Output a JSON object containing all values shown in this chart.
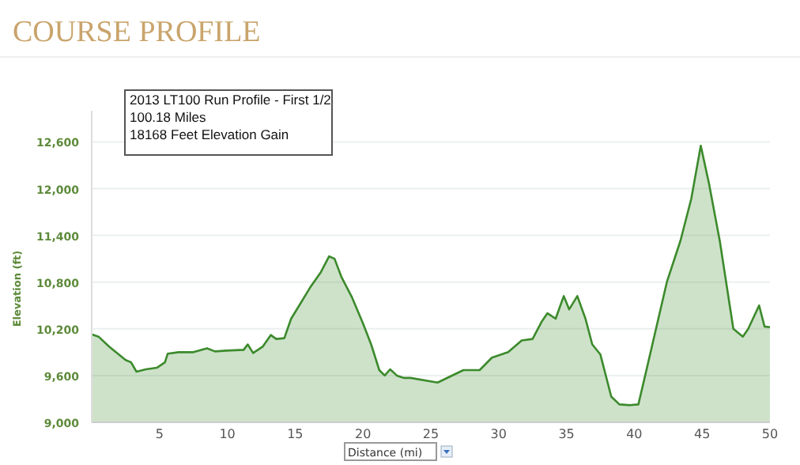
{
  "chart_data": {
    "type": "area",
    "title": "COURSE PROFILE",
    "xlabel": "Distance (mi)",
    "ylabel": "Elevation (ft)",
    "annotations": [
      "2013 LT100 Run Profile - First 1/2",
      "100.18 Miles",
      "18168 Feet Elevation Gain"
    ],
    "series": [
      {
        "color": "#3c8a2c",
        "x": [
          0,
          0.5,
          1.3,
          2.5,
          2.9,
          3.3,
          4.0,
          4.8,
          5.4,
          5.6,
          6.4,
          7.5,
          8.5,
          9.1,
          9.9,
          11.2,
          11.5,
          11.9,
          12.6,
          13.2,
          13.6,
          14.2,
          14.7,
          15.3,
          16.1,
          16.9,
          17.5,
          17.9,
          18.4,
          19.2,
          20.0,
          20.6,
          21.2,
          21.6,
          22.0,
          22.5,
          23.0,
          23.5,
          25.5,
          27.4,
          28.6,
          29.5,
          30.7,
          31.7,
          32.5,
          33.2,
          33.6,
          34.2,
          34.8,
          35.2,
          35.8,
          36.4,
          36.9,
          37.5,
          38.3,
          38.9,
          39.7,
          40.3,
          40.8,
          41.6,
          42.4,
          43.4,
          44.2,
          44.9,
          45.5,
          46.3,
          47.3,
          48.0,
          48.4,
          49.2,
          49.6,
          50.0
        ],
        "values": [
          10130,
          10100,
          9970,
          9800,
          9770,
          9650,
          9680,
          9700,
          9770,
          9880,
          9900,
          9900,
          9950,
          9910,
          9920,
          9930,
          10000,
          9890,
          9970,
          10120,
          10070,
          10080,
          10330,
          10500,
          10730,
          10930,
          11130,
          11100,
          10870,
          10600,
          10270,
          10000,
          9670,
          9600,
          9680,
          9600,
          9570,
          9570,
          9510,
          9670,
          9670,
          9830,
          9900,
          10050,
          10070,
          10300,
          10400,
          10330,
          10620,
          10450,
          10620,
          10330,
          10000,
          9870,
          9330,
          9230,
          9220,
          9230,
          9600,
          10200,
          10800,
          11330,
          11870,
          12550,
          12070,
          11330,
          10200,
          10100,
          10200,
          10500,
          10230,
          10220
        ]
      }
    ],
    "xlim": [
      0,
      50
    ],
    "xticks": [
      5,
      10,
      15,
      20,
      25,
      30,
      35,
      40,
      45,
      50
    ],
    "ylim": [
      9000,
      13000
    ],
    "yticks": [
      {
        "value": 9000,
        "label": "9,000"
      },
      {
        "value": 9600,
        "label": "9,600"
      },
      {
        "value": 10200,
        "label": "10,200"
      },
      {
        "value": 10800,
        "label": "10,800"
      },
      {
        "value": 11400,
        "label": "11,400"
      },
      {
        "value": 12000,
        "label": "12,000"
      },
      {
        "value": 12600,
        "label": "12,600"
      }
    ],
    "grid": "y"
  }
}
